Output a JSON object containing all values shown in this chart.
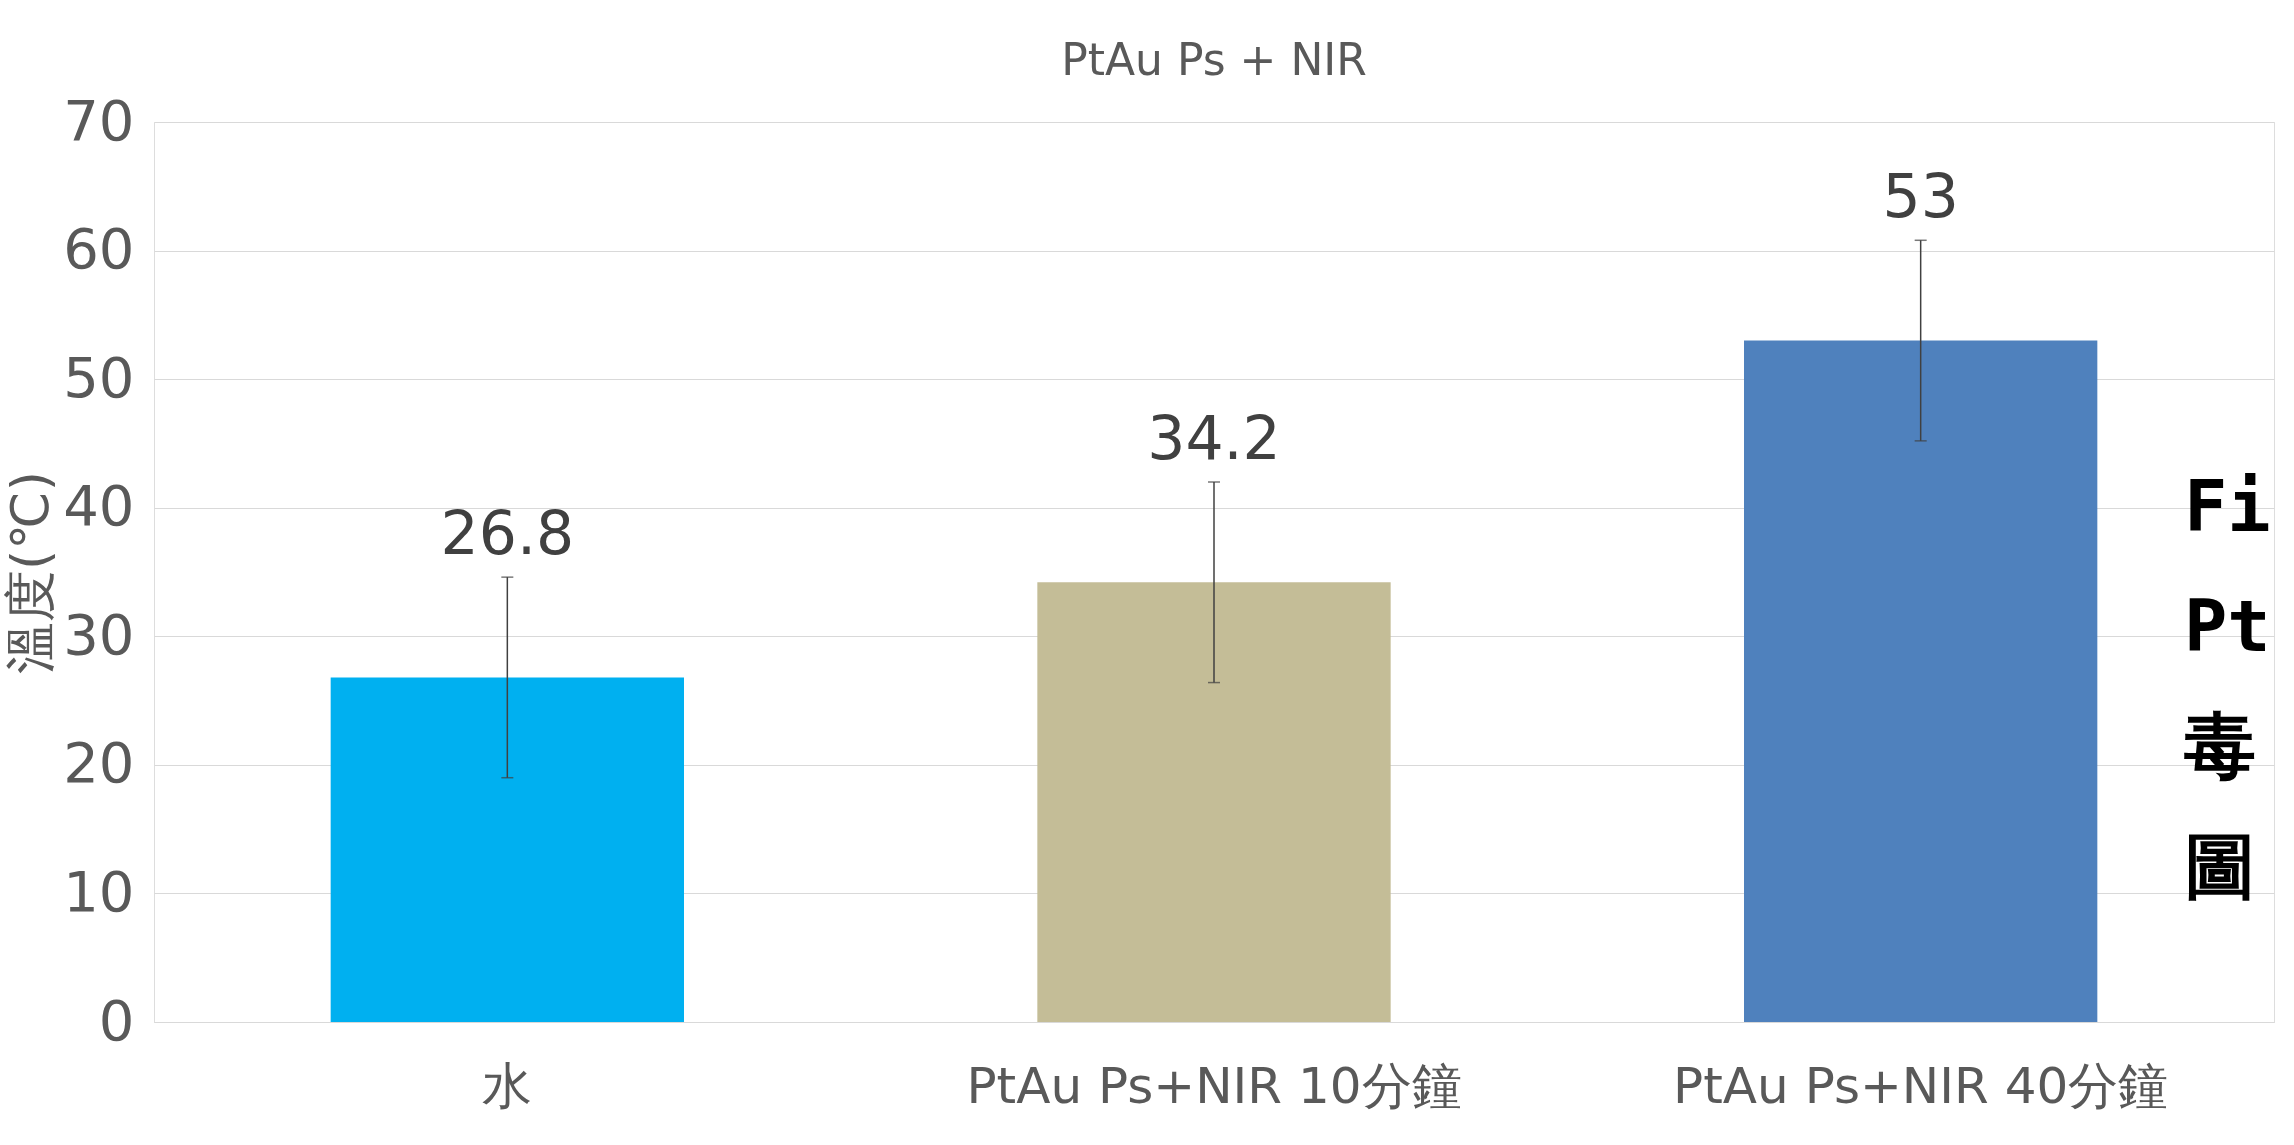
{
  "chart_data": {
    "type": "bar",
    "title": "PtAu Ps + NIR",
    "ylabel": "溫度(℃)",
    "categories": [
      "水",
      "PtAu Ps+NIR 10分鐘",
      "PtAu Ps+NIR 40分鐘"
    ],
    "values": [
      26.8,
      34.2,
      53
    ],
    "colors": [
      "#00b0f0",
      "#c4bd97",
      "#4f81bd"
    ],
    "errors": [
      7.8,
      7.8,
      7.8
    ],
    "data_labels": true,
    "ylim": [
      0,
      70
    ],
    "yticks": [
      0,
      10,
      20,
      30,
      40,
      50,
      60,
      70
    ],
    "grid": "y",
    "annotations": [
      "Fi",
      "Pt",
      "毒",
      "圖"
    ]
  }
}
